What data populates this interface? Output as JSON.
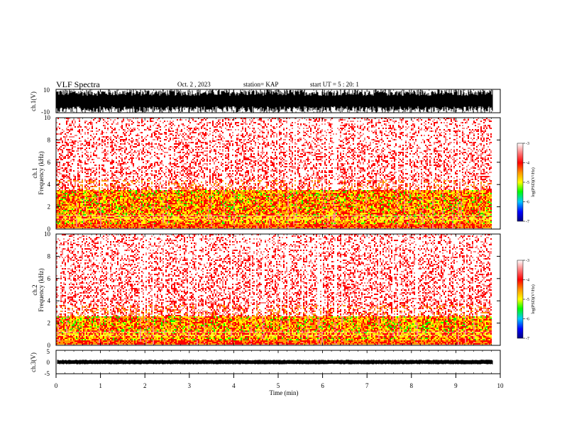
{
  "header": {
    "title": "VLF Spectra",
    "date": "Oct. 2 , 2023",
    "station": "station= KAP",
    "start": "start UT = 5 : 20: 1"
  },
  "chart_data": [
    {
      "name": "ch1-waveform",
      "type": "line",
      "ylabel": "ch.1(V)",
      "ylim": [
        -10,
        10
      ],
      "yticks": [
        "10",
        "-10"
      ],
      "amplitude_range": [
        -10,
        10
      ]
    },
    {
      "name": "ch1-spectrogram",
      "type": "heatmap",
      "ylabel": "ch.1\nFrequency (kHz)",
      "ylim": [
        0,
        10
      ],
      "yticks": [
        "0",
        "2",
        "4",
        "6",
        "8",
        "10"
      ],
      "colorbar": {
        "label": "log(PSD)(V²/Hz)",
        "range": [
          -7,
          -3
        ],
        "ticks": [
          "-3",
          "-4",
          "-5",
          "-6",
          "-7"
        ]
      }
    },
    {
      "name": "ch2-spectrogram",
      "type": "heatmap",
      "ylabel": "ch.2\nFrequency (kHz)",
      "ylim": [
        0,
        10
      ],
      "yticks": [
        "0",
        "2",
        "4",
        "6",
        "8",
        "10"
      ],
      "colorbar": {
        "label": "log(PSD)(V²/Hz)",
        "range": [
          -7,
          -3
        ],
        "ticks": [
          "-3",
          "-4",
          "-5",
          "-6",
          "-7"
        ]
      }
    },
    {
      "name": "ch3-waveform",
      "type": "line",
      "ylabel": "ch.3(V)",
      "ylim": [
        -5,
        5
      ],
      "yticks": [
        "5",
        "0",
        "-5"
      ],
      "amplitude_range": [
        -1,
        1
      ]
    }
  ],
  "xaxis": {
    "label": "Time (min)",
    "range": [
      0,
      10
    ],
    "ticks": [
      "0",
      "1",
      "2",
      "3",
      "4",
      "5",
      "6",
      "7",
      "8",
      "9",
      "10"
    ],
    "data_end": 9.83
  },
  "colors": {
    "colormap": [
      "#000080",
      "#0000ff",
      "#00c8ff",
      "#00ff00",
      "#ffff00",
      "#ff9900",
      "#ff0000",
      "#ff8080",
      "#ffffff"
    ]
  }
}
